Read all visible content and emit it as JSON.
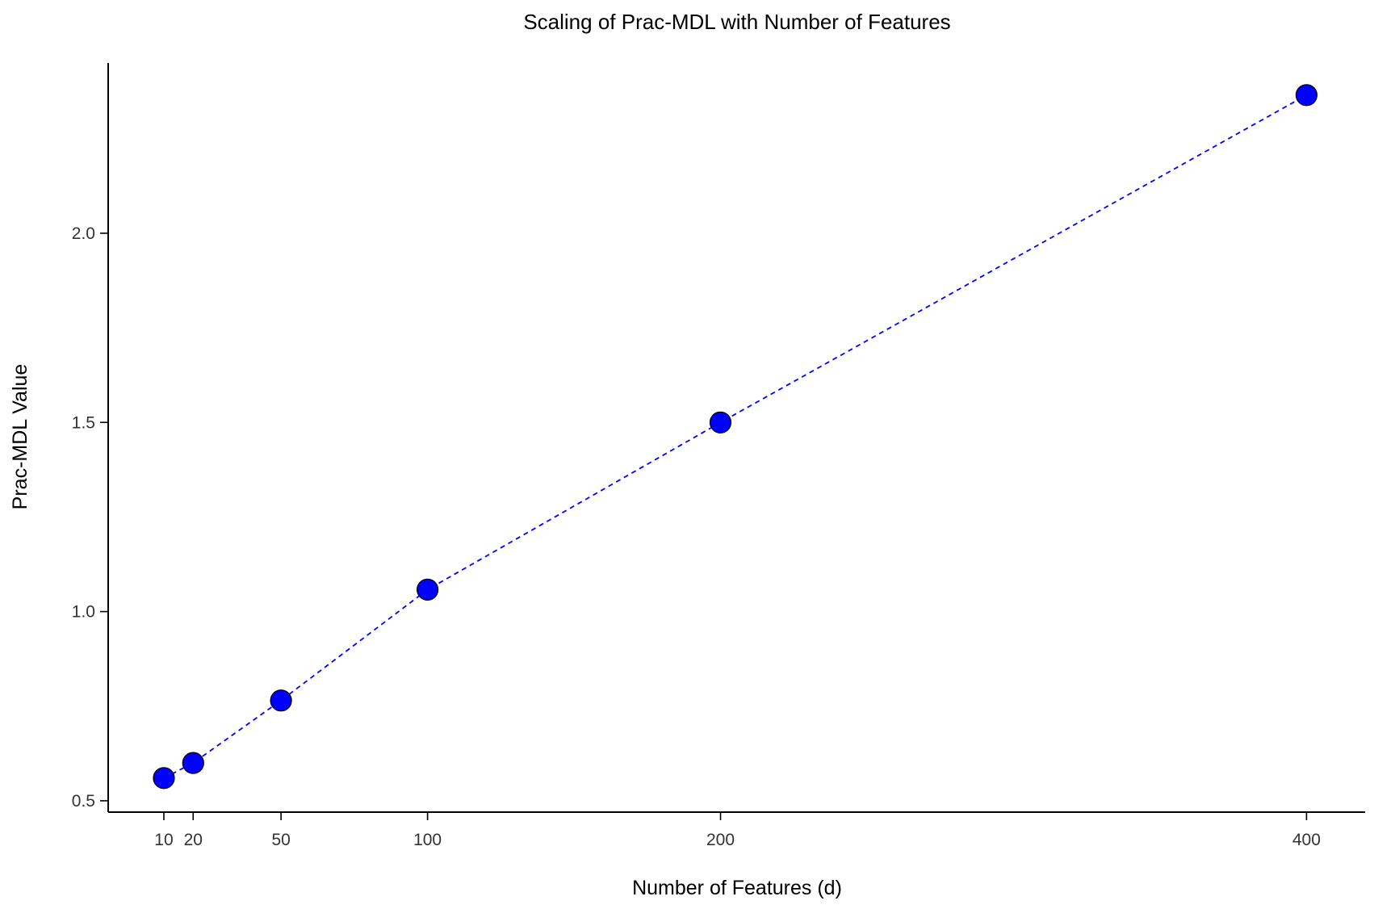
{
  "chart_data": {
    "type": "line",
    "title": "Scaling of Prac-MDL with Number of Features",
    "xlabel": "Number of Features (d)",
    "ylabel": "Prac-MDL Value",
    "x_ticks": [
      10,
      20,
      50,
      100,
      200,
      400
    ],
    "y_ticks": [
      0.5,
      1.0,
      1.5,
      2.0
    ],
    "y_tick_labels": [
      "0.5",
      "1.0",
      "1.5",
      "2.0"
    ],
    "xlim": [
      -9,
      420
    ],
    "ylim": [
      0.47,
      2.45
    ],
    "grid": false,
    "legend": "none",
    "series": [
      {
        "x": [
          10,
          20,
          50,
          100,
          200,
          400
        ],
        "y": [
          0.56,
          0.6,
          0.765,
          1.058,
          1.5,
          2.365
        ],
        "line_style": "dashed",
        "line_color": "#0000ff",
        "marker": "circle",
        "marker_color": "#0000ff",
        "marker_edge_color": "#000000"
      }
    ]
  }
}
